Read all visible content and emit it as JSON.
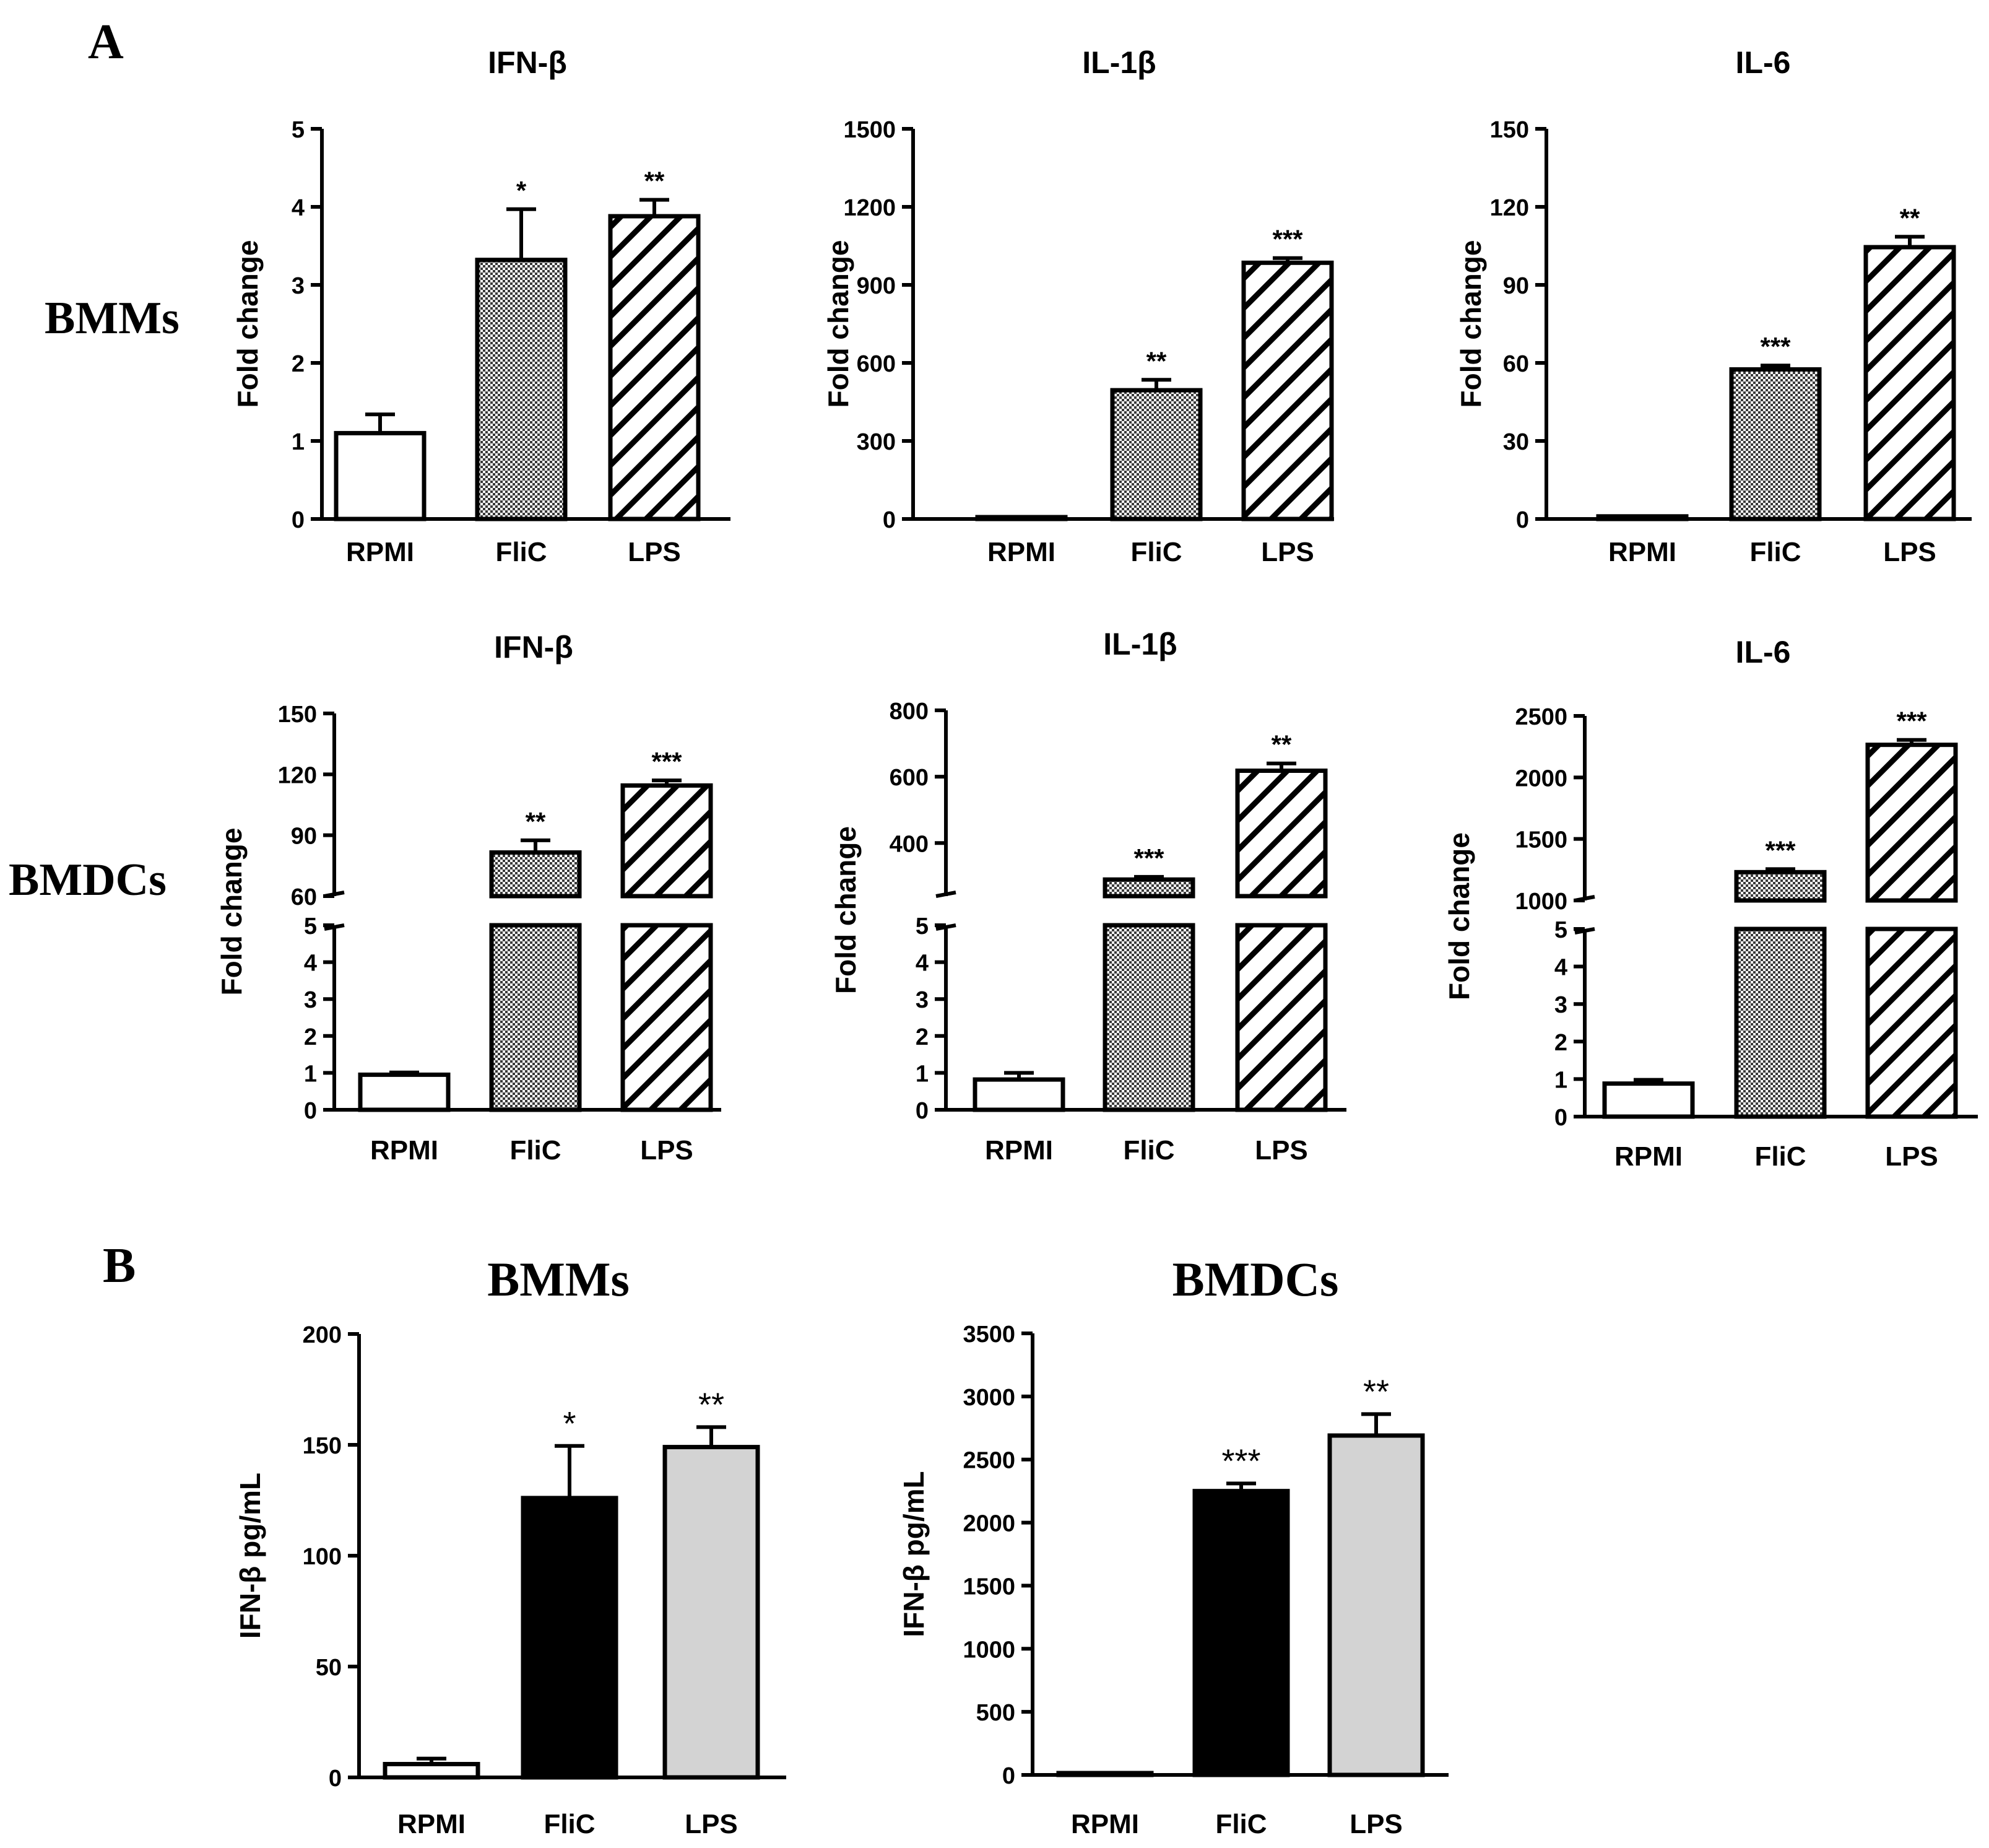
{
  "panels": {
    "a": "A",
    "b": "B"
  },
  "row_labels": {
    "row1": "BMMs",
    "row2": "BMDCs"
  },
  "colors": {
    "rpmi": "#ffffff",
    "flic_b": "#000000",
    "lps_b": "#d3d3d3"
  },
  "chart_data": [
    {
      "type": "bar",
      "panel": "A",
      "cell": "BMMs",
      "title": "IFN-β",
      "ylabel": "Fold change",
      "categories": [
        "RPMI",
        "FliC",
        "LPS"
      ],
      "values": [
        1.1,
        3.32,
        3.88
      ],
      "errors": [
        0.24,
        0.65,
        0.21
      ],
      "significance": [
        "",
        "*",
        "**"
      ],
      "ylim": [
        0,
        5
      ],
      "yticks": [
        "0",
        "1",
        "2",
        "3",
        "4",
        "5"
      ],
      "fills": [
        "white",
        "dots",
        "hatch"
      ]
    },
    {
      "type": "bar",
      "panel": "A",
      "cell": "BMMs",
      "title": "IL-1β",
      "ylabel": "Fold change",
      "categories": [
        "RPMI",
        "FliC",
        "LPS"
      ],
      "values": [
        1,
        495,
        985
      ],
      "errors": [
        0,
        40,
        18
      ],
      "significance": [
        "",
        "**",
        "***"
      ],
      "ylim": [
        0,
        1500
      ],
      "yticks": [
        "0",
        "300",
        "600",
        "900",
        "1200",
        "1500"
      ],
      "fills": [
        "white",
        "dots",
        "hatch"
      ]
    },
    {
      "type": "bar",
      "panel": "A",
      "cell": "BMMs",
      "title": "IL-6",
      "ylabel": "Fold change",
      "categories": [
        "RPMI",
        "FliC",
        "LPS"
      ],
      "values": [
        1,
        57.5,
        104.5
      ],
      "errors": [
        0,
        1.5,
        4
      ],
      "significance": [
        "",
        "***",
        "**"
      ],
      "ylim": [
        0,
        150
      ],
      "yticks": [
        "0",
        "30",
        "60",
        "90",
        "120",
        "150"
      ],
      "fills": [
        "white",
        "dots",
        "hatch"
      ]
    },
    {
      "type": "bar",
      "panel": "A",
      "cell": "BMDCs",
      "title": "IFN-β",
      "ylabel": "Fold change",
      "categories": [
        "RPMI",
        "FliC",
        "LPS"
      ],
      "values": [
        0.95,
        81.5,
        114.5
      ],
      "errors": [
        0.06,
        6,
        2.5
      ],
      "significance": [
        "",
        "**",
        "***"
      ],
      "ylim_low": [
        0,
        5
      ],
      "ylim_high": [
        60,
        150
      ],
      "yticks_low": [
        "0",
        "1",
        "2",
        "3",
        "4",
        "5"
      ],
      "yticks_high": [
        "60",
        "90",
        "120",
        "150"
      ],
      "fills": [
        "white",
        "dots",
        "hatch"
      ]
    },
    {
      "type": "bar",
      "panel": "A",
      "cell": "BMDCs",
      "title": "IL-1β",
      "ylabel": "Fold change",
      "categories": [
        "RPMI",
        "FliC",
        "LPS"
      ],
      "values": [
        0.82,
        290,
        618
      ],
      "errors": [
        0.18,
        8,
        22
      ],
      "significance": [
        "",
        "***",
        "**"
      ],
      "ylim_low": [
        0,
        5
      ],
      "ylim_high": [
        240,
        800
      ],
      "yticks_low": [
        "0",
        "1",
        "2",
        "3",
        "4",
        "5"
      ],
      "yticks_high": [
        "400",
        "600",
        "800"
      ],
      "fills": [
        "white",
        "dots",
        "hatch"
      ]
    },
    {
      "type": "bar",
      "panel": "A",
      "cell": "BMDCs",
      "title": "IL-6",
      "ylabel": "Fold change",
      "categories": [
        "RPMI",
        "FliC",
        "LPS"
      ],
      "values": [
        0.88,
        1230,
        2265
      ],
      "errors": [
        0.1,
        25,
        40
      ],
      "significance": [
        "",
        "***",
        "***"
      ],
      "ylim_low": [
        0,
        5
      ],
      "ylim_high": [
        1000,
        2500
      ],
      "yticks_low": [
        "0",
        "1",
        "2",
        "3",
        "4",
        "5"
      ],
      "yticks_high": [
        "1000",
        "1500",
        "2000",
        "2500"
      ],
      "fills": [
        "white",
        "dots",
        "hatch"
      ]
    },
    {
      "type": "bar",
      "panel": "B",
      "title": "BMMs",
      "ylabel": "IFN-β  pg/mL",
      "categories": [
        "RPMI",
        "FliC",
        "LPS"
      ],
      "values": [
        6,
        126,
        149
      ],
      "errors": [
        2.5,
        23.5,
        9
      ],
      "significance": [
        "",
        "*",
        "**"
      ],
      "ylim": [
        0,
        200
      ],
      "yticks": [
        "0",
        "50",
        "100",
        "150",
        "200"
      ],
      "fills": [
        "white",
        "black",
        "lightgray"
      ]
    },
    {
      "type": "bar",
      "panel": "B",
      "title": "BMDCs",
      "ylabel": "IFN-β  pg/mL",
      "categories": [
        "RPMI",
        "FliC",
        "LPS"
      ],
      "values": [
        0,
        2250,
        2690
      ],
      "errors": [
        0,
        60,
        170
      ],
      "significance": [
        "",
        "***",
        "**"
      ],
      "ylim": [
        0,
        3500
      ],
      "yticks": [
        "0",
        "500",
        "1000",
        "1500",
        "2000",
        "2500",
        "3000",
        "3500"
      ],
      "fills": [
        "white",
        "black",
        "lightgray"
      ]
    }
  ]
}
